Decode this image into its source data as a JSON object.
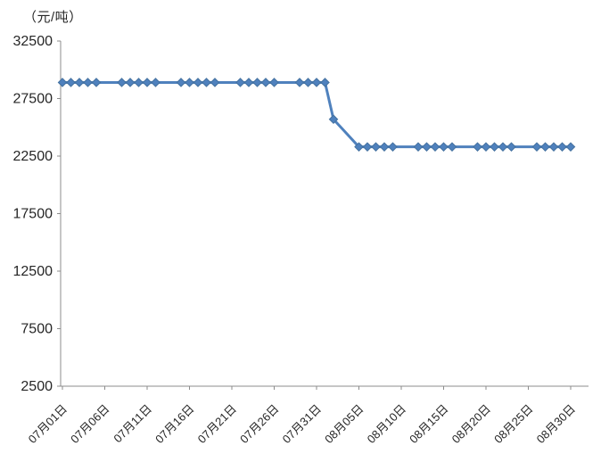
{
  "chart": {
    "unit_label": "（元/吨）"
  },
  "colors": {
    "series": "#4f81bd",
    "series_edge": "#44719f",
    "axis": "#8c8c8c",
    "text": "#262626"
  },
  "chart_data": {
    "type": "line",
    "title": "",
    "ylabel": "（元/吨）",
    "xlabel": "",
    "legend": "none",
    "grid": false,
    "marker": "diamond",
    "ylim": [
      2500,
      32500
    ],
    "y_ticks": [
      32500,
      27500,
      22500,
      17500,
      12500,
      7500,
      2500
    ],
    "x_tick_labels": [
      "07月01日",
      "07月06日",
      "07月11日",
      "07月16日",
      "07月21日",
      "07月26日",
      "07月31日",
      "08月05日",
      "08月10日",
      "08月15日",
      "08月20日",
      "08月25日",
      "08月30日"
    ],
    "x_dates": [
      "07月01日",
      "07月02日",
      "07月03日",
      "07月04日",
      "07月05日",
      "07月08日",
      "07月09日",
      "07月10日",
      "07月11日",
      "07月12日",
      "07月15日",
      "07月16日",
      "07月17日",
      "07月18日",
      "07月19日",
      "07月22日",
      "07月23日",
      "07月24日",
      "07月25日",
      "07月26日",
      "07月29日",
      "07月30日",
      "07月31日",
      "08月01日",
      "08月02日",
      "08月05日",
      "08月06日",
      "08月07日",
      "08月08日",
      "08月09日",
      "08月12日",
      "08月13日",
      "08月14日",
      "08月15日",
      "08月16日",
      "08月19日",
      "08月20日",
      "08月21日",
      "08月22日",
      "08月23日",
      "08月26日",
      "08月27日",
      "08月28日",
      "08月29日",
      "08月30日"
    ],
    "values": [
      28900,
      28900,
      28900,
      28900,
      28900,
      28900,
      28900,
      28900,
      28900,
      28900,
      28900,
      28900,
      28900,
      28900,
      28900,
      28900,
      28900,
      28900,
      28900,
      28900,
      28900,
      28900,
      28900,
      28900,
      25700,
      23300,
      23300,
      23300,
      23300,
      23300,
      23300,
      23300,
      23300,
      23300,
      23300,
      23300,
      23300,
      23300,
      23300,
      23300,
      23300,
      23300,
      23300,
      23300,
      23300
    ]
  }
}
